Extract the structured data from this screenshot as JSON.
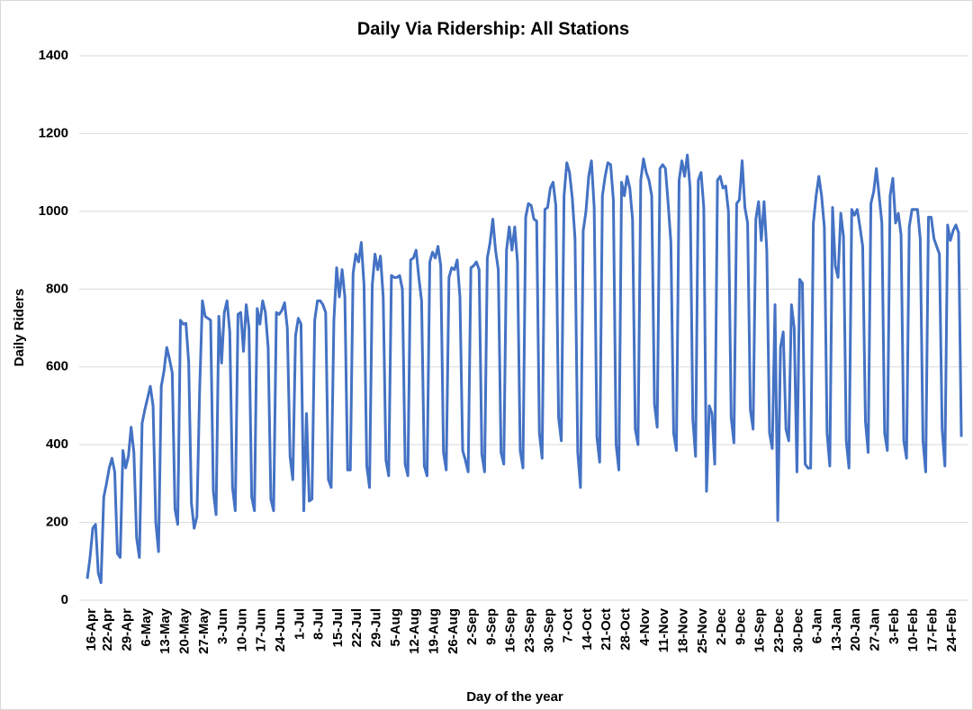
{
  "chart_data": {
    "type": "line",
    "title": "Daily Via Ridership: All Stations",
    "x_label": "Day of the year",
    "y_label": "Daily Riders",
    "color": "#4472c4",
    "grid": true,
    "ylim": [
      0,
      1400
    ],
    "yticks": [
      0,
      200,
      400,
      600,
      800,
      1000,
      1200,
      1400
    ],
    "categories": [
      "16-Apr",
      null,
      null,
      null,
      null,
      null,
      "22-Apr",
      null,
      null,
      null,
      null,
      null,
      null,
      "29-Apr",
      null,
      null,
      null,
      null,
      null,
      null,
      "6-May",
      null,
      null,
      null,
      null,
      null,
      null,
      "13-May",
      null,
      null,
      null,
      null,
      null,
      null,
      "20-May",
      null,
      null,
      null,
      null,
      null,
      null,
      "27-May",
      null,
      null,
      null,
      null,
      null,
      null,
      "3-Jun",
      null,
      null,
      null,
      null,
      null,
      null,
      "10-Jun",
      null,
      null,
      null,
      null,
      null,
      null,
      "17-Jun",
      null,
      null,
      null,
      null,
      null,
      null,
      "24-Jun",
      null,
      null,
      null,
      null,
      null,
      null,
      "1-Jul",
      null,
      null,
      null,
      null,
      null,
      null,
      "8-Jul",
      null,
      null,
      null,
      null,
      null,
      null,
      "15-Jul",
      null,
      null,
      null,
      null,
      null,
      null,
      "22-Jul",
      null,
      null,
      null,
      null,
      null,
      null,
      "29-Jul",
      null,
      null,
      null,
      null,
      null,
      null,
      "5-Aug",
      null,
      null,
      null,
      null,
      null,
      null,
      "12-Aug",
      null,
      null,
      null,
      null,
      null,
      null,
      "19-Aug",
      null,
      null,
      null,
      null,
      null,
      null,
      "26-Aug",
      null,
      null,
      null,
      null,
      null,
      null,
      "2-Sep",
      null,
      null,
      null,
      null,
      null,
      null,
      "9-Sep",
      null,
      null,
      null,
      null,
      null,
      null,
      "16-Sep",
      null,
      null,
      null,
      null,
      null,
      null,
      "23-Sep",
      null,
      null,
      null,
      null,
      null,
      null,
      "30-Sep",
      null,
      null,
      null,
      null,
      null,
      null,
      "7-Oct",
      null,
      null,
      null,
      null,
      null,
      null,
      "14-Oct",
      null,
      null,
      null,
      null,
      null,
      null,
      "21-Oct",
      null,
      null,
      null,
      null,
      null,
      null,
      "28-Oct",
      null,
      null,
      null,
      null,
      null,
      null,
      "4-Nov",
      null,
      null,
      null,
      null,
      null,
      null,
      "11-Nov",
      null,
      null,
      null,
      null,
      null,
      null,
      "18-Nov",
      null,
      null,
      null,
      null,
      null,
      null,
      "25-Nov",
      null,
      null,
      null,
      null,
      null,
      null,
      "2-Dec",
      null,
      null,
      null,
      null,
      null,
      null,
      "9-Dec",
      null,
      null,
      null,
      null,
      null,
      null,
      "16-Sep",
      null,
      null,
      null,
      null,
      null,
      null,
      "23-Dec",
      null,
      null,
      null,
      null,
      null,
      null,
      "30-Dec",
      null,
      null,
      null,
      null,
      null,
      null,
      "6-Jan",
      null,
      null,
      null,
      null,
      null,
      null,
      "13-Jan",
      null,
      null,
      null,
      null,
      null,
      null,
      "20-Jan",
      null,
      null,
      null,
      null,
      null,
      null,
      "27-Jan",
      null,
      null,
      null,
      null,
      null,
      null,
      "3-Feb",
      null,
      null,
      null,
      null,
      null,
      null,
      "10-Feb",
      null,
      null,
      null,
      null,
      null,
      null,
      "17-Feb",
      null,
      null,
      null,
      null,
      null,
      null,
      "24-Feb",
      null,
      null,
      null,
      null,
      null
    ],
    "values": [
      55,
      110,
      185,
      195,
      70,
      45,
      265,
      300,
      340,
      365,
      330,
      120,
      110,
      385,
      340,
      370,
      445,
      380,
      160,
      110,
      455,
      490,
      520,
      550,
      500,
      200,
      125,
      550,
      590,
      650,
      620,
      585,
      235,
      195,
      720,
      710,
      712,
      612,
      250,
      185,
      215,
      540,
      770,
      730,
      725,
      720,
      280,
      220,
      730,
      610,
      740,
      770,
      690,
      290,
      230,
      735,
      740,
      640,
      760,
      700,
      265,
      230,
      750,
      710,
      770,
      740,
      650,
      260,
      230,
      740,
      735,
      745,
      765,
      700,
      370,
      310,
      680,
      725,
      710,
      230,
      480,
      255,
      260,
      720,
      770,
      770,
      760,
      740,
      310,
      290,
      720,
      855,
      780,
      850,
      780,
      335,
      335,
      840,
      890,
      870,
      920,
      810,
      345,
      290,
      810,
      890,
      850,
      885,
      780,
      360,
      320,
      835,
      830,
      830,
      835,
      800,
      350,
      320,
      875,
      880,
      900,
      830,
      770,
      345,
      320,
      870,
      895,
      880,
      910,
      860,
      380,
      335,
      830,
      855,
      850,
      875,
      780,
      385,
      360,
      330,
      855,
      860,
      870,
      850,
      375,
      330,
      880,
      920,
      980,
      900,
      850,
      380,
      350,
      900,
      960,
      900,
      960,
      870,
      385,
      340,
      985,
      1020,
      1015,
      980,
      975,
      430,
      365,
      1005,
      1010,
      1060,
      1075,
      1015,
      470,
      410,
      1040,
      1125,
      1100,
      1035,
      930,
      380,
      290,
      950,
      1000,
      1090,
      1130,
      1010,
      420,
      355,
      1040,
      1090,
      1125,
      1120,
      1030,
      400,
      335,
      1075,
      1040,
      1090,
      1060,
      980,
      440,
      400,
      1080,
      1135,
      1100,
      1080,
      1040,
      505,
      445,
      1110,
      1120,
      1110,
      1020,
      920,
      430,
      385,
      1080,
      1130,
      1090,
      1145,
      1060,
      465,
      370,
      1080,
      1100,
      1010,
      280,
      500,
      480,
      350,
      1080,
      1090,
      1060,
      1065,
      1000,
      470,
      405,
      1020,
      1030,
      1130,
      1010,
      970,
      490,
      440,
      980,
      1025,
      925,
      1025,
      900,
      430,
      390,
      760,
      205,
      650,
      690,
      440,
      410,
      760,
      700,
      330,
      825,
      815,
      350,
      340,
      340,
      970,
      1040,
      1090,
      1040,
      960,
      430,
      345,
      1010,
      860,
      830,
      995,
      935,
      410,
      340,
      1005,
      990,
      1005,
      960,
      910,
      460,
      380,
      1020,
      1050,
      1110,
      1040,
      970,
      430,
      385,
      1040,
      1085,
      970,
      995,
      940,
      410,
      365,
      960,
      1005,
      1005,
      1005,
      930,
      410,
      330,
      985,
      985,
      930,
      910,
      890,
      440,
      345,
      965,
      925,
      950,
      965,
      945,
      420
    ]
  }
}
